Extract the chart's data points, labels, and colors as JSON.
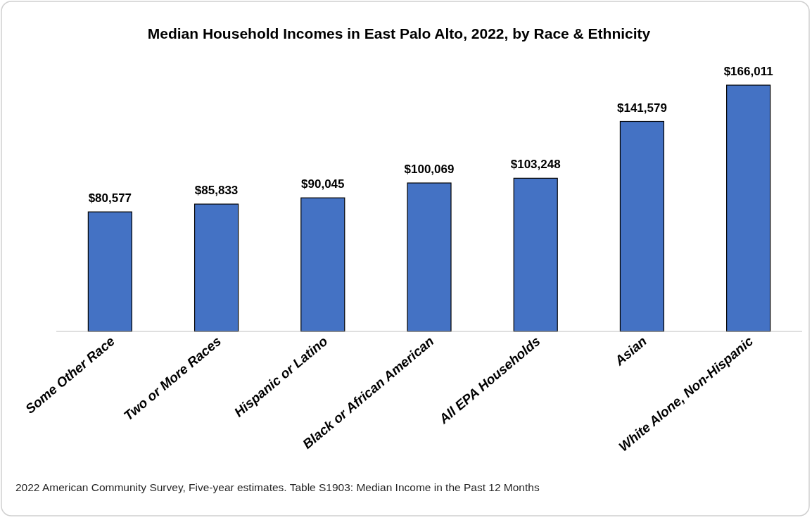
{
  "chart_data": {
    "type": "bar",
    "title": "Median Household Incomes in East Palo Alto, 2022, by Race & Ethnicity",
    "categories": [
      "Some Other Race",
      "Two or More Races",
      "Hispanic or Latino",
      "Black or African American",
      "All EPA Households",
      "Asian",
      "White Alone, Non-Hispanic"
    ],
    "values": [
      80577,
      85833,
      90045,
      100069,
      103248,
      141579,
      166011
    ],
    "value_labels": [
      "$80,577",
      "$85,833",
      "$90,045",
      "$100,069",
      "$103,248",
      "$141,579",
      "$166,011"
    ],
    "color": "#4472c4",
    "annotations": [
      "2022 American Community Survey, Five-year estimates. Table S1903: Median Income in the Past 12 Months"
    ]
  }
}
